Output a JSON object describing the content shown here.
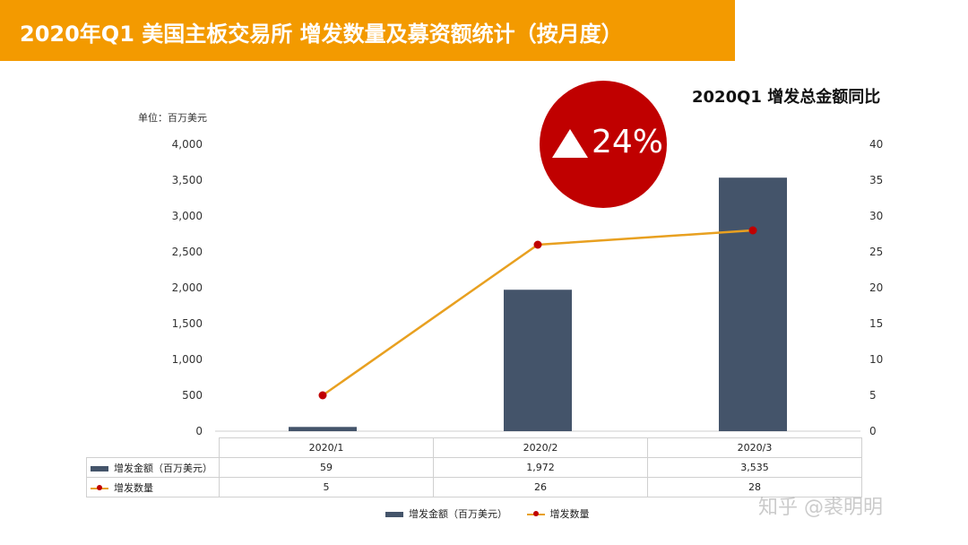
{
  "header": {
    "title": "2020年Q1 美国主板交易所 增发数量及募资额统计（按月度）",
    "yoy_title": "2020Q1 增发总金额同比",
    "unit_label": "单位：百万美元"
  },
  "badge": {
    "text": "24%",
    "color": "#c00000",
    "icon": "triangle-up-icon"
  },
  "chart_data": {
    "type": "bar",
    "categories": [
      "2020/1",
      "2020/2",
      "2020/3"
    ],
    "series": [
      {
        "name": "增发金额（百万美元）",
        "type": "bar",
        "axis": "left",
        "values": [
          59,
          1972,
          3535
        ],
        "color": "#44546a"
      },
      {
        "name": "增发数量",
        "type": "line",
        "axis": "right",
        "values": [
          5,
          26,
          28
        ],
        "color": "#e8a020",
        "marker_color": "#c00000"
      }
    ],
    "ylim_left": [
      0,
      4000
    ],
    "yticks_left": [
      "0",
      "500",
      "1,000",
      "1,500",
      "2,000",
      "2,500",
      "3,000",
      "3,500",
      "4,000"
    ],
    "ylim_right": [
      0,
      40
    ],
    "yticks_right": [
      "0",
      "5",
      "10",
      "15",
      "20",
      "25",
      "30",
      "35",
      "40"
    ],
    "grid": false,
    "legend": "bottom"
  },
  "table": {
    "rows": [
      {
        "label": "增发金额（百万美元）",
        "values": [
          "59",
          "1,972",
          "3,535"
        ]
      },
      {
        "label": "增发数量",
        "values": [
          "5",
          "26",
          "28"
        ]
      }
    ]
  },
  "legend": {
    "bar_label": "增发金额（百万美元）",
    "line_label": "增发数量"
  },
  "watermark": "知乎 @裘明明"
}
